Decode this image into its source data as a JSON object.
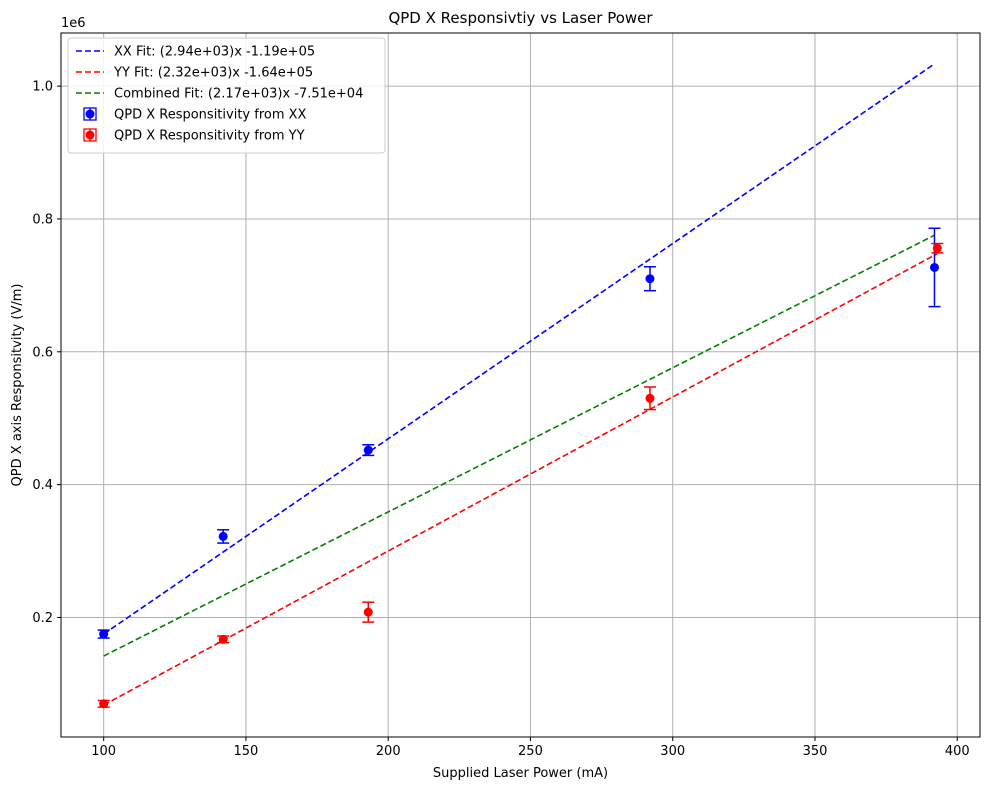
{
  "chart_data": {
    "type": "scatter",
    "title": "QPD X Responsivtiy vs Laser Power",
    "xlabel": "Supplied Laser Power (mA)",
    "ylabel": "QPD X axis Responsitvity (V/m)",
    "y_offset_text": "1e6",
    "xlim": [
      85,
      408
    ],
    "ylim": [
      0.02,
      1.08
    ],
    "x_ticks": [
      100,
      150,
      200,
      250,
      300,
      350,
      400
    ],
    "x_tick_labels": [
      "100",
      "150",
      "200",
      "250",
      "300",
      "350",
      "400"
    ],
    "y_ticks": [
      0.2,
      0.4,
      0.6,
      0.8,
      1.0
    ],
    "y_tick_labels": [
      "0.2",
      "0.4",
      "0.6",
      "0.8",
      "1.0"
    ],
    "grid": true,
    "legend_position": "top-left",
    "fits": [
      {
        "name": "XX Fit: (2.94e+03)x -1.19e+05",
        "color": "#0000ff",
        "slope": 0.00294,
        "intercept": -0.119,
        "x_range": [
          100,
          392
        ]
      },
      {
        "name": "YY Fit: (2.32e+03)x -1.64e+05",
        "color": "#ff0000",
        "slope": 0.00232,
        "intercept": -0.164,
        "x_range": [
          100,
          393
        ]
      },
      {
        "name": "Combined Fit: (2.17e+03)x -7.51e+04",
        "color": "#008000",
        "slope": 0.00217,
        "intercept": -0.0751,
        "x_range": [
          100,
          392
        ]
      }
    ],
    "series": [
      {
        "name": "QPD X Responsitivity from XX",
        "color": "#0000ff",
        "points": [
          {
            "x": 100,
            "y": 0.175,
            "err": 0.006
          },
          {
            "x": 142,
            "y": 0.322,
            "err": 0.01
          },
          {
            "x": 193,
            "y": 0.452,
            "err": 0.008
          },
          {
            "x": 292,
            "y": 0.71,
            "err": 0.018
          },
          {
            "x": 392,
            "y": 0.727,
            "err": 0.059
          }
        ]
      },
      {
        "name": "QPD X Responsitivity from YY",
        "color": "#ff0000",
        "points": [
          {
            "x": 100,
            "y": 0.07,
            "err": 0.005
          },
          {
            "x": 142,
            "y": 0.167,
            "err": 0.005
          },
          {
            "x": 193,
            "y": 0.208,
            "err": 0.015
          },
          {
            "x": 292,
            "y": 0.53,
            "err": 0.017
          },
          {
            "x": 393,
            "y": 0.756,
            "err": 0.007
          }
        ]
      }
    ]
  }
}
